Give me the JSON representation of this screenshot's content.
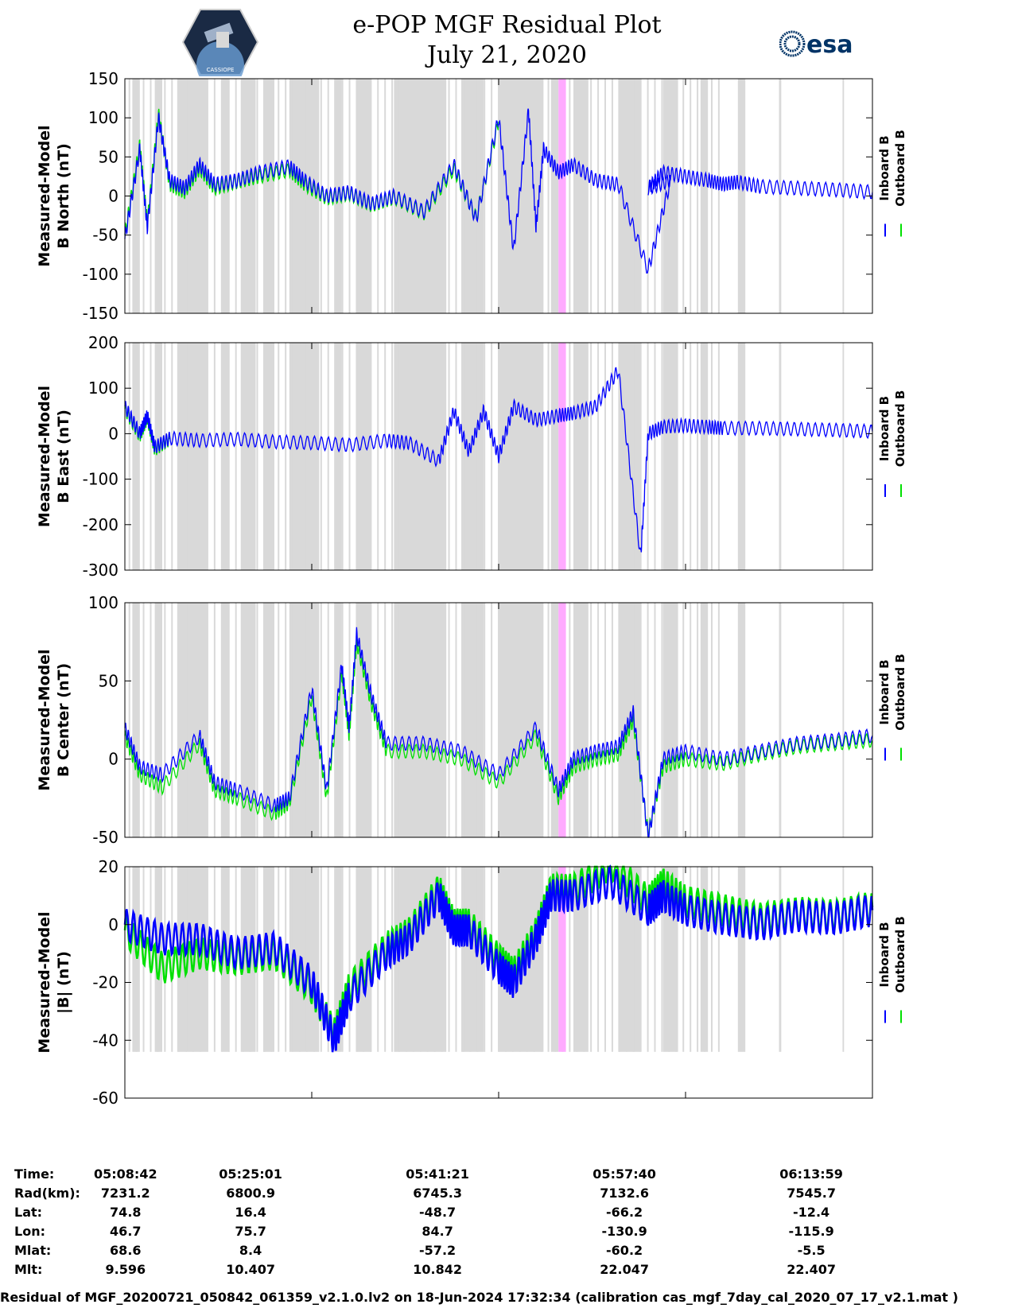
{
  "header": {
    "title_line1": "e-POP MGF Residual Plot",
    "title_line2": "July 21, 2020",
    "left_logo_text": "CASSIOPE",
    "right_logo_text": "esa"
  },
  "chart_data": [
    {
      "type": "line",
      "ylabel_line1": "Measured-Model",
      "ylabel_line2": "B North (nT)",
      "ylim": [
        -150,
        150
      ],
      "yticks": [
        150,
        100,
        50,
        0,
        -50,
        -100,
        -150
      ],
      "legend": [
        "Inboard B",
        "Outboard B"
      ],
      "series": [
        {
          "name": "Inboard B",
          "color": "#0000ff",
          "x": [
            0,
            0.02,
            0.03,
            0.045,
            0.06,
            0.08,
            0.1,
            0.12,
            0.15,
            0.18,
            0.22,
            0.24,
            0.27,
            0.3,
            0.33,
            0.36,
            0.4,
            0.44,
            0.47,
            0.5,
            0.52,
            0.54,
            0.55,
            0.56,
            0.58,
            0.6,
            0.63,
            0.66,
            0.7,
            0.73,
            0.7,
            0.72,
            0.75,
            0.78,
            0.8,
            0.82,
            0.85,
            0.9,
            0.95,
            1.0
          ],
          "values": [
            -55,
            60,
            -40,
            100,
            20,
            10,
            40,
            15,
            20,
            30,
            38,
            20,
            0,
            5,
            -10,
            0,
            -20,
            40,
            -30,
            100,
            -70,
            110,
            -40,
            60,
            30,
            40,
            20,
            15,
            -95,
            20,
            10,
            30,
            25,
            20,
            15,
            18,
            12,
            10,
            8,
            5
          ]
        },
        {
          "name": "Outboard B",
          "color": "#00e000",
          "x": [
            0,
            0.02,
            0.03,
            0.045,
            0.06,
            0.08,
            0.1,
            0.12,
            0.15,
            0.18,
            0.22,
            0.24,
            0.27,
            0.3,
            0.33,
            0.36,
            0.4,
            0.44,
            0.47,
            0.5
          ],
          "values": [
            -50,
            65,
            -35,
            105,
            15,
            5,
            35,
            10,
            18,
            25,
            33,
            15,
            -3,
            3,
            -12,
            -2,
            -22,
            35,
            -28,
            95
          ]
        }
      ]
    },
    {
      "type": "line",
      "ylabel_line1": "Measured-Model",
      "ylabel_line2": "B East (nT)",
      "ylim": [
        -300,
        200
      ],
      "yticks": [
        200,
        100,
        0,
        -100,
        -200,
        -300
      ],
      "legend": [
        "Inboard B",
        "Outboard B"
      ],
      "series": [
        {
          "name": "Inboard B",
          "color": "#0000ff",
          "x": [
            0,
            0.02,
            0.03,
            0.04,
            0.06,
            0.1,
            0.15,
            0.2,
            0.25,
            0.3,
            0.35,
            0.38,
            0.42,
            0.44,
            0.46,
            0.48,
            0.5,
            0.52,
            0.55,
            0.58,
            0.6,
            0.63,
            0.66,
            0.69,
            0.7,
            0.72,
            0.75,
            0.78,
            0.8,
            0.85,
            0.9,
            0.95,
            1.0
          ],
          "values": [
            60,
            0,
            40,
            -30,
            -10,
            -15,
            -12,
            -18,
            -20,
            -25,
            -15,
            -20,
            -60,
            50,
            -40,
            50,
            -50,
            60,
            30,
            40,
            45,
            60,
            140,
            -270,
            0,
            15,
            18,
            15,
            12,
            12,
            10,
            8,
            5
          ]
        },
        {
          "name": "Outboard B",
          "color": "#00e000",
          "x": [
            0,
            0.02,
            0.03,
            0.04,
            0.06
          ],
          "values": [
            55,
            -5,
            35,
            -35,
            -12
          ]
        }
      ]
    },
    {
      "type": "line",
      "ylabel_line1": "Measured-Model",
      "ylabel_line2": "B Center (nT)",
      "ylim": [
        -50,
        100
      ],
      "yticks": [
        100,
        50,
        0,
        -50
      ],
      "legend": [
        "Inboard B",
        "Outboard B"
      ],
      "series": [
        {
          "name": "Inboard B",
          "color": "#0000ff",
          "x": [
            0,
            0.02,
            0.05,
            0.1,
            0.12,
            0.15,
            0.2,
            0.22,
            0.25,
            0.27,
            0.29,
            0.3,
            0.31,
            0.33,
            0.35,
            0.4,
            0.45,
            0.5,
            0.55,
            0.58,
            0.6,
            0.63,
            0.66,
            0.68,
            0.7,
            0.72,
            0.75,
            0.8,
            0.85,
            0.9,
            0.95,
            1.0
          ],
          "values": [
            20,
            -5,
            -10,
            15,
            -15,
            -20,
            -30,
            -25,
            45,
            -20,
            60,
            20,
            80,
            40,
            10,
            10,
            5,
            -10,
            20,
            -20,
            0,
            5,
            8,
            30,
            -50,
            0,
            5,
            0,
            5,
            10,
            12,
            15
          ]
        },
        {
          "name": "Outboard B",
          "color": "#00e000",
          "x": [
            0,
            0.02,
            0.05,
            0.1,
            0.12,
            0.15,
            0.2,
            0.22,
            0.25,
            0.27,
            0.29,
            0.3,
            0.31,
            0.33,
            0.35,
            0.4,
            0.45,
            0.5,
            0.55,
            0.58,
            0.6,
            0.63,
            0.66,
            0.68,
            0.7,
            0.72,
            0.75,
            0.8,
            0.85,
            0.9,
            0.95,
            1.0
          ],
          "values": [
            15,
            -10,
            -18,
            10,
            -20,
            -25,
            -35,
            -28,
            40,
            -25,
            55,
            15,
            75,
            35,
            5,
            5,
            0,
            -15,
            15,
            -25,
            -5,
            0,
            3,
            25,
            -48,
            -5,
            0,
            -3,
            3,
            8,
            10,
            12
          ]
        }
      ]
    },
    {
      "type": "line",
      "ylabel_line1": "Measured-Model",
      "ylabel_line2": "|B| (nT)",
      "ylim": [
        -60,
        20
      ],
      "yticks": [
        20,
        0,
        -20,
        -40,
        -60
      ],
      "legend": [
        "Inboard B",
        "Outboard B"
      ],
      "series": [
        {
          "name": "Inboard B",
          "color": "#0000ff",
          "x": [
            0,
            0.05,
            0.1,
            0.15,
            0.2,
            0.25,
            0.28,
            0.3,
            0.35,
            0.38,
            0.42,
            0.44,
            0.46,
            0.5,
            0.52,
            0.55,
            0.57,
            0.6,
            0.65,
            0.7,
            0.72,
            0.75,
            0.8,
            0.85,
            0.9,
            0.95,
            1.0
          ],
          "values": [
            0,
            -5,
            -5,
            -10,
            -8,
            -20,
            -40,
            -25,
            -10,
            -5,
            10,
            -2,
            -2,
            -15,
            -20,
            -5,
            10,
            10,
            15,
            5,
            10,
            5,
            2,
            0,
            3,
            2,
            5
          ]
        },
        {
          "name": "Outboard B",
          "color": "#00e000",
          "x": [
            0,
            0.05,
            0.1,
            0.15,
            0.2,
            0.25,
            0.28,
            0.3,
            0.35,
            0.38,
            0.42,
            0.44,
            0.46,
            0.5,
            0.52,
            0.55,
            0.57,
            0.6,
            0.65,
            0.7,
            0.72,
            0.75,
            0.8,
            0.85,
            0.9,
            0.95,
            1.0
          ],
          "values": [
            -2,
            -15,
            -10,
            -12,
            -10,
            -22,
            -38,
            -22,
            -8,
            -3,
            12,
            0,
            0,
            -12,
            -17,
            -3,
            12,
            12,
            21,
            8,
            14,
            8,
            5,
            2,
            4,
            3,
            6
          ]
        }
      ]
    }
  ],
  "time_table": {
    "rows": [
      {
        "label": "Time:",
        "values": [
          "05:08:42",
          "05:25:01",
          "05:41:21",
          "05:57:40",
          "06:13:59"
        ]
      },
      {
        "label": "Rad(km):",
        "values": [
          "7231.2",
          "6800.9",
          "6745.3",
          "7132.6",
          "7545.7"
        ]
      },
      {
        "label": "Lat:",
        "values": [
          "74.8",
          "16.4",
          "-48.7",
          "-66.2",
          "-12.4"
        ]
      },
      {
        "label": "Lon:",
        "values": [
          "46.7",
          "75.7",
          "84.7",
          "-130.9",
          "-115.9"
        ]
      },
      {
        "label": "Mlat:",
        "values": [
          "68.6",
          "8.4",
          "-57.2",
          "-60.2",
          "-5.5"
        ]
      },
      {
        "label": "Mlt:",
        "values": [
          "9.596",
          "10.407",
          "10.842",
          "22.047",
          "22.407"
        ]
      }
    ]
  },
  "footer": {
    "text": "Residual of MGF_20200721_050842_061359_v2.1.0.lv2 on 18-Jun-2024 17:32:34 (calibration cas_mgf_7day_cal_2020_07_17_v2.1.mat )"
  },
  "colors": {
    "inboard": "#0000ff",
    "outboard": "#00e000",
    "shade": "#d9d9d9",
    "highlight": "#ffaaff"
  }
}
